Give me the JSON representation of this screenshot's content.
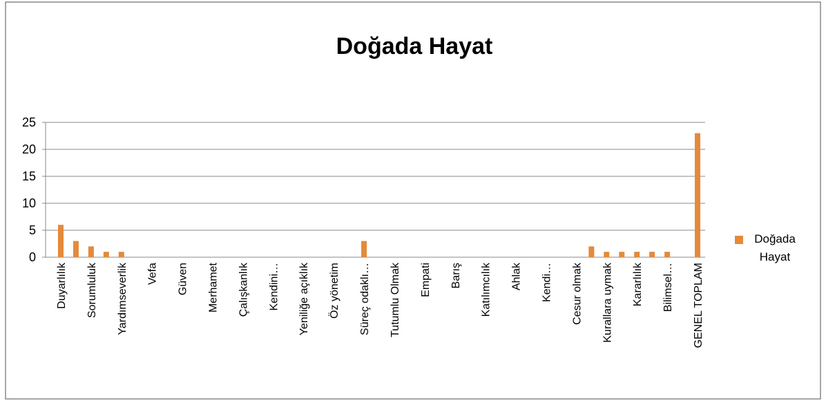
{
  "chart_data": {
    "type": "bar",
    "title": "Doğada Hayat",
    "categories": [
      "Duyarlılık",
      null,
      "Sorumluluk",
      null,
      "Yardımseverlik",
      null,
      "Vefa",
      null,
      "Güven",
      null,
      "Merhamet",
      null,
      "Çalışkanlık",
      null,
      "Kendini…",
      null,
      "Yeniliğe açıklık",
      null,
      "Öz yönetim",
      null,
      "Süreç odaklı…",
      null,
      "Tutumlu Olmak",
      null,
      "Empati",
      null,
      "Barış",
      null,
      "Katılımcılık",
      null,
      "Ahlak",
      null,
      "Kendi…",
      null,
      "Cesur olmak",
      null,
      "Kurallara uymak",
      null,
      "Kararlılık",
      null,
      "Bilimsel…",
      null,
      "GENEL TOPLAM"
    ],
    "series": [
      {
        "name": "Doğada Hayat",
        "color": "#e48a3a",
        "values": [
          6,
          3,
          2,
          1,
          1,
          0,
          0,
          0,
          0,
          0,
          0,
          0,
          0,
          0,
          0,
          0,
          0,
          0,
          0,
          0,
          3,
          0,
          0,
          0,
          0,
          0,
          0,
          0,
          0,
          0,
          0,
          0,
          0,
          0,
          0,
          2,
          1,
          1,
          1,
          1,
          1,
          0,
          23
        ]
      }
    ],
    "ylim": [
      0,
      25
    ],
    "yticks": [
      0,
      5,
      10,
      15,
      20,
      25
    ],
    "grid": true,
    "legend": "right"
  }
}
